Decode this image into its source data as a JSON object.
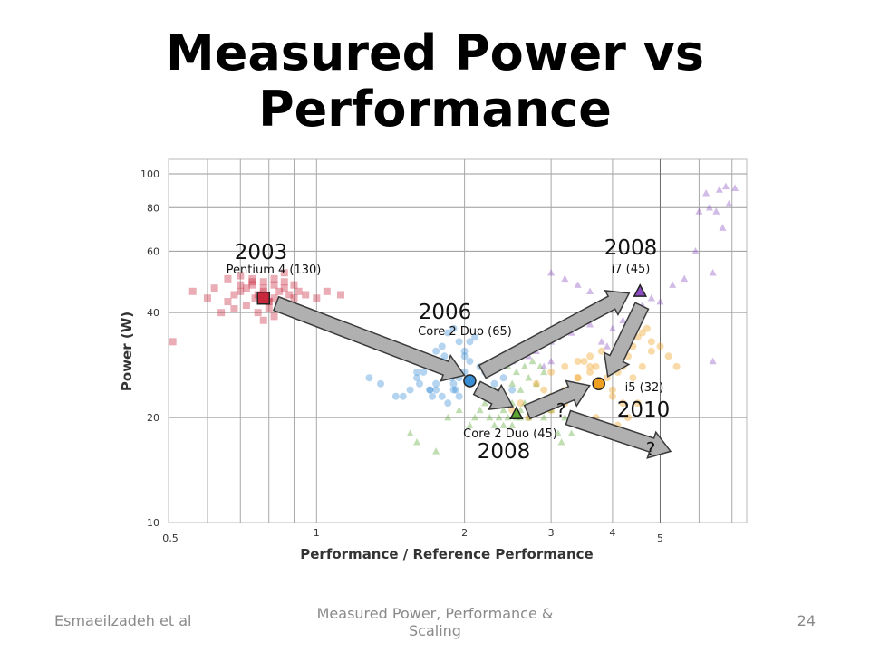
{
  "slide": {
    "title_line1": "Measured Power vs",
    "title_line2": "Performance",
    "footer_left": "Esmaeilzadeh et al",
    "footer_center": "Measured Power, Performance & Scaling",
    "page_number": "24"
  },
  "chart_data": {
    "type": "scatter",
    "xlabel": "Performance / Reference Performance",
    "ylabel": "Power (W)",
    "x_scale": "log",
    "y_scale": "log",
    "xlim": [
      0.5,
      7.5
    ],
    "ylim": [
      10,
      110
    ],
    "x_ticks": [
      {
        "value": 0.5,
        "label": "0,5"
      },
      {
        "value": 1,
        "label": "1"
      },
      {
        "value": 2,
        "label": "2"
      },
      {
        "value": 3,
        "label": "3"
      },
      {
        "value": 4,
        "label": "4"
      },
      {
        "value": 5,
        "label": "5"
      }
    ],
    "y_ticks": [
      {
        "value": 10,
        "label": "10"
      },
      {
        "value": 20,
        "label": "20"
      },
      {
        "value": 40,
        "label": "40"
      },
      {
        "value": 60,
        "label": "60"
      },
      {
        "value": 80,
        "label": "80"
      },
      {
        "value": 100,
        "label": "100"
      }
    ],
    "grid": true,
    "colors": {
      "pentium4": "#c8283c",
      "core2_65": "#3a8fd4",
      "core2_45": "#5aa832",
      "i5": "#f0a020",
      "i7": "#8a4cc0",
      "arrow_fill": "#b0b0b0",
      "arrow_stroke": "#3a3a3a"
    },
    "series": [
      {
        "key": "pentium4",
        "marker": "square",
        "x": [
          0.51,
          0.56,
          0.6,
          0.62,
          0.66,
          0.68,
          0.7,
          0.72,
          0.74,
          0.75,
          0.76,
          0.78,
          0.8,
          0.82,
          0.84,
          0.86,
          0.88,
          0.9,
          0.92,
          0.95,
          1.0,
          1.05,
          1.12,
          0.64,
          0.68,
          0.72,
          0.76,
          0.8,
          0.84,
          0.88,
          0.92,
          0.7,
          0.74,
          0.78,
          0.82,
          0.86,
          0.9,
          0.66,
          0.7,
          0.74,
          0.78,
          0.82,
          0.86,
          0.78,
          0.82,
          0.8
        ],
        "y": [
          33,
          46,
          44,
          47,
          43,
          45,
          46,
          47,
          48,
          44,
          45,
          46,
          43,
          44,
          46,
          47,
          45,
          44,
          46,
          45,
          44,
          46,
          45,
          40,
          41,
          42,
          40,
          41,
          42,
          41,
          40,
          48,
          49,
          47,
          48,
          49,
          48,
          50,
          51,
          50,
          49,
          50,
          52,
          38,
          39,
          43
        ]
      },
      {
        "key": "core2_65",
        "marker": "circle",
        "x": [
          1.28,
          1.35,
          1.45,
          1.5,
          1.55,
          1.6,
          1.62,
          1.65,
          1.68,
          1.7,
          1.72,
          1.75,
          1.78,
          1.8,
          1.82,
          1.85,
          1.88,
          1.9,
          1.92,
          1.95,
          2.0,
          2.05,
          2.1,
          2.15,
          2.2,
          2.3,
          2.4,
          2.5,
          1.75,
          1.8,
          1.85,
          1.9,
          1.95,
          2.0,
          2.05,
          1.7,
          1.75,
          1.8,
          1.85,
          1.9,
          1.95,
          2.0,
          1.6,
          1.7
        ],
        "y": [
          26,
          25,
          23,
          23,
          24,
          26,
          25,
          27,
          28,
          24,
          23,
          25,
          28,
          29,
          30,
          27,
          26,
          25,
          24,
          23,
          30,
          33,
          34,
          28,
          27,
          25,
          26,
          24,
          24,
          23,
          22,
          24,
          26,
          27,
          29,
          29,
          31,
          32,
          35,
          36,
          33,
          31,
          27,
          24
        ]
      },
      {
        "key": "core2_45",
        "marker": "triangle",
        "x": [
          1.55,
          1.6,
          1.75,
          1.85,
          1.95,
          2.05,
          2.1,
          2.15,
          2.2,
          2.25,
          2.3,
          2.35,
          2.4,
          2.45,
          2.5,
          2.55,
          2.6,
          2.65,
          2.7,
          2.8,
          2.85,
          2.9,
          3.0,
          3.1,
          3.15,
          3.2,
          3.3,
          2.2,
          2.3,
          2.4,
          2.5,
          2.6,
          2.7,
          2.8,
          2.9,
          2.45,
          2.55,
          2.65,
          2.75,
          2.85,
          2.4,
          2.5,
          2.6
        ],
        "y": [
          18,
          17,
          16,
          20,
          21,
          19,
          20,
          21,
          22,
          20,
          19,
          20,
          21,
          20,
          22,
          20,
          21,
          22,
          20,
          21,
          22,
          20,
          21,
          18,
          17,
          20,
          18,
          23,
          24,
          23,
          25,
          24,
          26,
          25,
          27,
          28,
          27,
          28,
          29,
          28,
          19,
          19,
          20
        ]
      },
      {
        "key": "i5",
        "marker": "circle",
        "x": [
          2.5,
          2.6,
          2.7,
          2.8,
          2.9,
          3.0,
          3.1,
          3.2,
          3.3,
          3.4,
          3.5,
          3.6,
          3.7,
          3.8,
          3.9,
          4.0,
          4.1,
          4.2,
          4.3,
          4.4,
          4.5,
          4.6,
          4.7,
          4.8,
          5.0,
          5.2,
          5.4,
          2.8,
          2.9,
          3.0,
          3.2,
          3.4,
          3.6,
          3.8,
          4.0,
          4.2,
          4.4,
          4.6,
          4.8,
          3.3,
          3.5,
          3.7,
          3.9,
          4.1,
          4.3,
          4.5,
          3.0,
          3.2,
          3.4,
          3.6
        ],
        "y": [
          21,
          22,
          20,
          21,
          22,
          21,
          23,
          22,
          24,
          26,
          29,
          30,
          28,
          31,
          26,
          24,
          27,
          28,
          30,
          32,
          34,
          35,
          36,
          33,
          32,
          30,
          28,
          25,
          24,
          27,
          28,
          29,
          27,
          25,
          23,
          22,
          26,
          28,
          31,
          20,
          19,
          20,
          18,
          19,
          20,
          22,
          23,
          24,
          26,
          28
        ]
      },
      {
        "key": "i7",
        "marker": "triangle",
        "x": [
          2.4,
          2.5,
          2.6,
          2.7,
          2.8,
          2.9,
          3.0,
          3.1,
          3.2,
          3.3,
          3.4,
          3.5,
          3.6,
          3.7,
          3.8,
          3.9,
          4.0,
          4.2,
          4.4,
          4.6,
          4.8,
          5.0,
          5.3,
          5.6,
          5.9,
          6.0,
          6.2,
          6.4,
          6.6,
          6.8,
          7.1,
          6.3,
          6.5,
          6.7,
          6.9,
          3.0,
          3.2,
          3.4,
          3.6,
          2.6,
          2.8,
          3.0,
          6.4
        ],
        "y": [
          28,
          29,
          31,
          30,
          32,
          28,
          33,
          34,
          36,
          35,
          38,
          39,
          37,
          40,
          33,
          32,
          36,
          38,
          40,
          42,
          44,
          43,
          48,
          50,
          60,
          78,
          88,
          52,
          90,
          92,
          91,
          80,
          78,
          70,
          82,
          52,
          50,
          48,
          46,
          30,
          31,
          29,
          29
        ]
      }
    ],
    "highlight_points": [
      {
        "key": "pentium4",
        "marker": "square",
        "x": 0.78,
        "y": 44,
        "year": "2003",
        "name": "Pentium 4 (130)"
      },
      {
        "key": "core2_65",
        "marker": "circle",
        "x": 2.05,
        "y": 25.5,
        "year": "2006",
        "name": "Core 2 Duo (65)"
      },
      {
        "key": "core2_45",
        "marker": "triangle",
        "x": 2.55,
        "y": 20.5,
        "year": "2008",
        "name": "Core 2 Duo (45)"
      },
      {
        "key": "i7",
        "marker": "triangle",
        "x": 4.55,
        "y": 46,
        "year": "2008",
        "name": "i7 (45)"
      },
      {
        "key": "i5",
        "marker": "circle",
        "x": 3.75,
        "y": 25,
        "year": "2010",
        "name": "i5 (32)"
      }
    ],
    "question_marks": [
      {
        "text": "?",
        "x": 3.15,
        "y": 21
      },
      {
        "text": "?",
        "x": 5.3,
        "y": 15.5
      }
    ]
  }
}
